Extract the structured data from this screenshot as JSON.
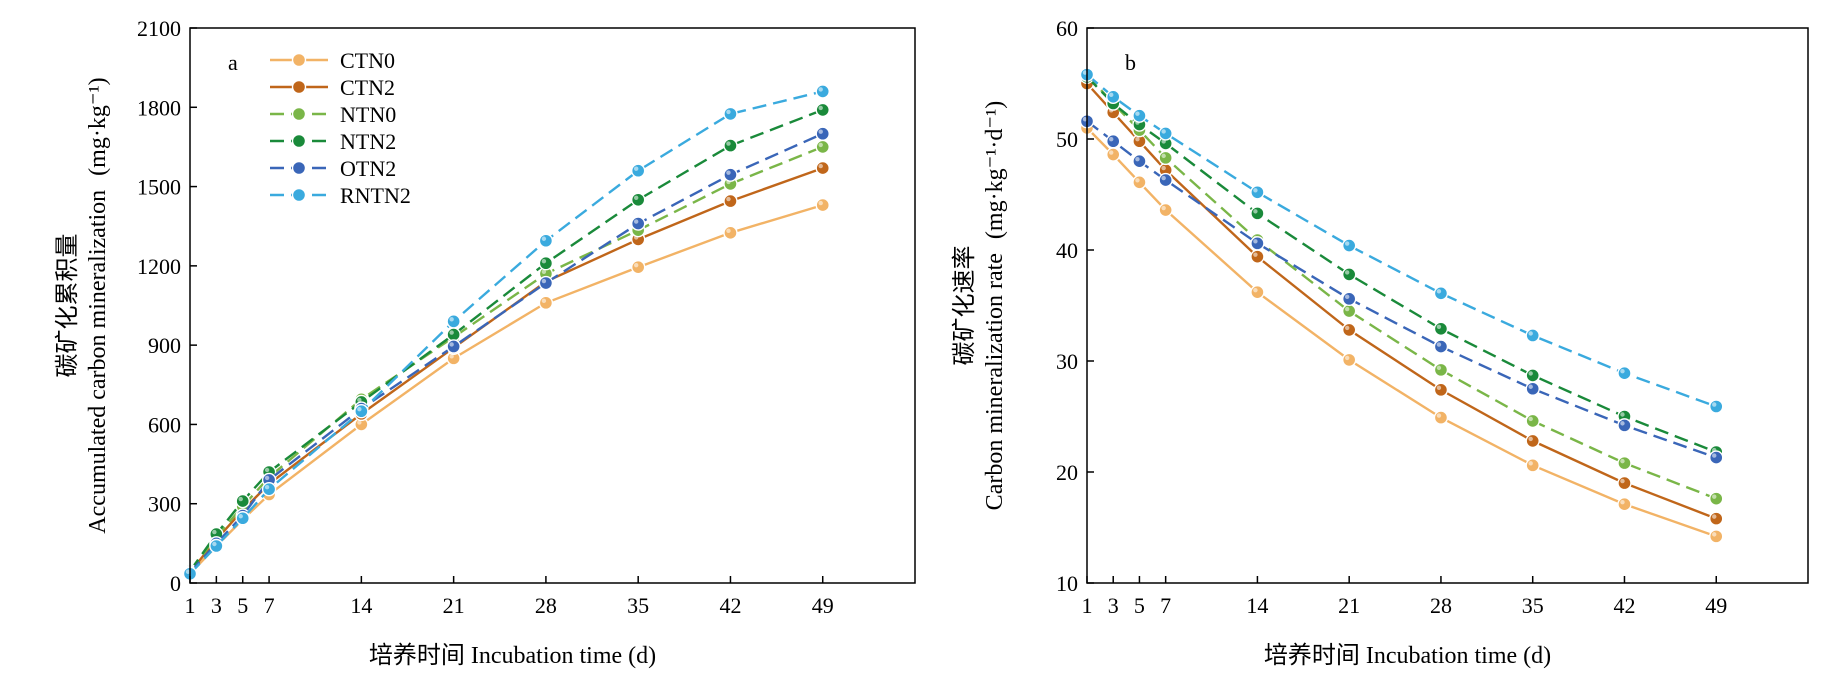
{
  "chart_data": [
    {
      "type": "line",
      "panel_label": "a",
      "ylabel_zh": "碳矿化累积量",
      "ylabel_en": "Accumulated carbon mineralization",
      "ylabel_unit": "(mg·kg⁻¹)",
      "xlabel": "培养时间 Incubation time (d)",
      "x": [
        1,
        3,
        5,
        7,
        14,
        21,
        28,
        35,
        42,
        49
      ],
      "x_ticks": [
        1,
        3,
        5,
        7,
        14,
        21,
        28,
        35,
        42,
        49
      ],
      "xlim": [
        1,
        56
      ],
      "ylim": [
        0,
        2100
      ],
      "y_ticks": [
        0,
        300,
        600,
        900,
        1200,
        1500,
        1800,
        2100
      ],
      "legend": "top-left",
      "grid": false,
      "series": [
        {
          "name": "CTN0",
          "color": "#f2b366",
          "dashed": false,
          "values": [
            35,
            140,
            240,
            335,
            600,
            850,
            1060,
            1195,
            1325,
            1430
          ]
        },
        {
          "name": "CTN2",
          "color": "#c0661a",
          "dashed": false,
          "values": [
            40,
            165,
            275,
            375,
            640,
            890,
            1140,
            1300,
            1445,
            1570
          ]
        },
        {
          "name": "NTN0",
          "color": "#7ab648",
          "dashed": true,
          "values": [
            45,
            175,
            290,
            400,
            695,
            930,
            1170,
            1335,
            1510,
            1650
          ]
        },
        {
          "name": "NTN2",
          "color": "#1a8a3a",
          "dashed": true,
          "values": [
            45,
            185,
            310,
            420,
            685,
            940,
            1210,
            1450,
            1655,
            1790
          ]
        },
        {
          "name": "OTN2",
          "color": "#3a66b8",
          "dashed": true,
          "values": [
            40,
            150,
            255,
            390,
            660,
            895,
            1135,
            1360,
            1545,
            1700
          ]
        },
        {
          "name": "RNTN2",
          "color": "#3aaade",
          "dashed": true,
          "values": [
            35,
            140,
            245,
            355,
            650,
            990,
            1295,
            1560,
            1775,
            1860
          ]
        }
      ]
    },
    {
      "type": "line",
      "panel_label": "b",
      "ylabel_zh": "碳矿化速率",
      "ylabel_en": "Carbon mineralization rate",
      "ylabel_unit": "(mg·kg⁻¹·d⁻¹)",
      "xlabel": "培养时间 Incubation time (d)",
      "x": [
        1,
        3,
        5,
        7,
        14,
        21,
        28,
        35,
        42,
        49
      ],
      "x_ticks": [
        1,
        3,
        5,
        7,
        14,
        21,
        28,
        35,
        42,
        49
      ],
      "xlim": [
        1,
        56
      ],
      "ylim": [
        10,
        60
      ],
      "y_ticks": [
        10,
        20,
        30,
        40,
        50,
        60
      ],
      "grid": false,
      "series": [
        {
          "name": "CTN0",
          "color": "#f2b366",
          "dashed": false,
          "values": [
            51.0,
            48.6,
            46.1,
            43.6,
            36.2,
            30.1,
            24.9,
            20.6,
            17.1,
            14.2
          ]
        },
        {
          "name": "CTN2",
          "color": "#c0661a",
          "dashed": false,
          "values": [
            55.0,
            52.4,
            49.8,
            47.2,
            39.4,
            32.8,
            27.4,
            22.8,
            19.0,
            15.8
          ]
        },
        {
          "name": "NTN0",
          "color": "#7ab648",
          "dashed": true,
          "values": [
            55.8,
            53.2,
            50.8,
            48.3,
            40.9,
            34.5,
            29.2,
            24.6,
            20.8,
            17.6
          ]
        },
        {
          "name": "NTN2",
          "color": "#1a8a3a",
          "dashed": true,
          "values": [
            55.6,
            53.2,
            51.3,
            49.6,
            43.3,
            37.8,
            32.9,
            28.7,
            25.0,
            21.8
          ]
        },
        {
          "name": "OTN2",
          "color": "#3a66b8",
          "dashed": true,
          "values": [
            51.6,
            49.8,
            48.0,
            46.3,
            40.6,
            35.6,
            31.3,
            27.5,
            24.2,
            21.3
          ]
        },
        {
          "name": "RNTN2",
          "color": "#3aaade",
          "dashed": true,
          "values": [
            55.8,
            53.8,
            52.1,
            50.5,
            45.2,
            40.4,
            36.1,
            32.3,
            28.9,
            25.9
          ]
        }
      ]
    }
  ]
}
